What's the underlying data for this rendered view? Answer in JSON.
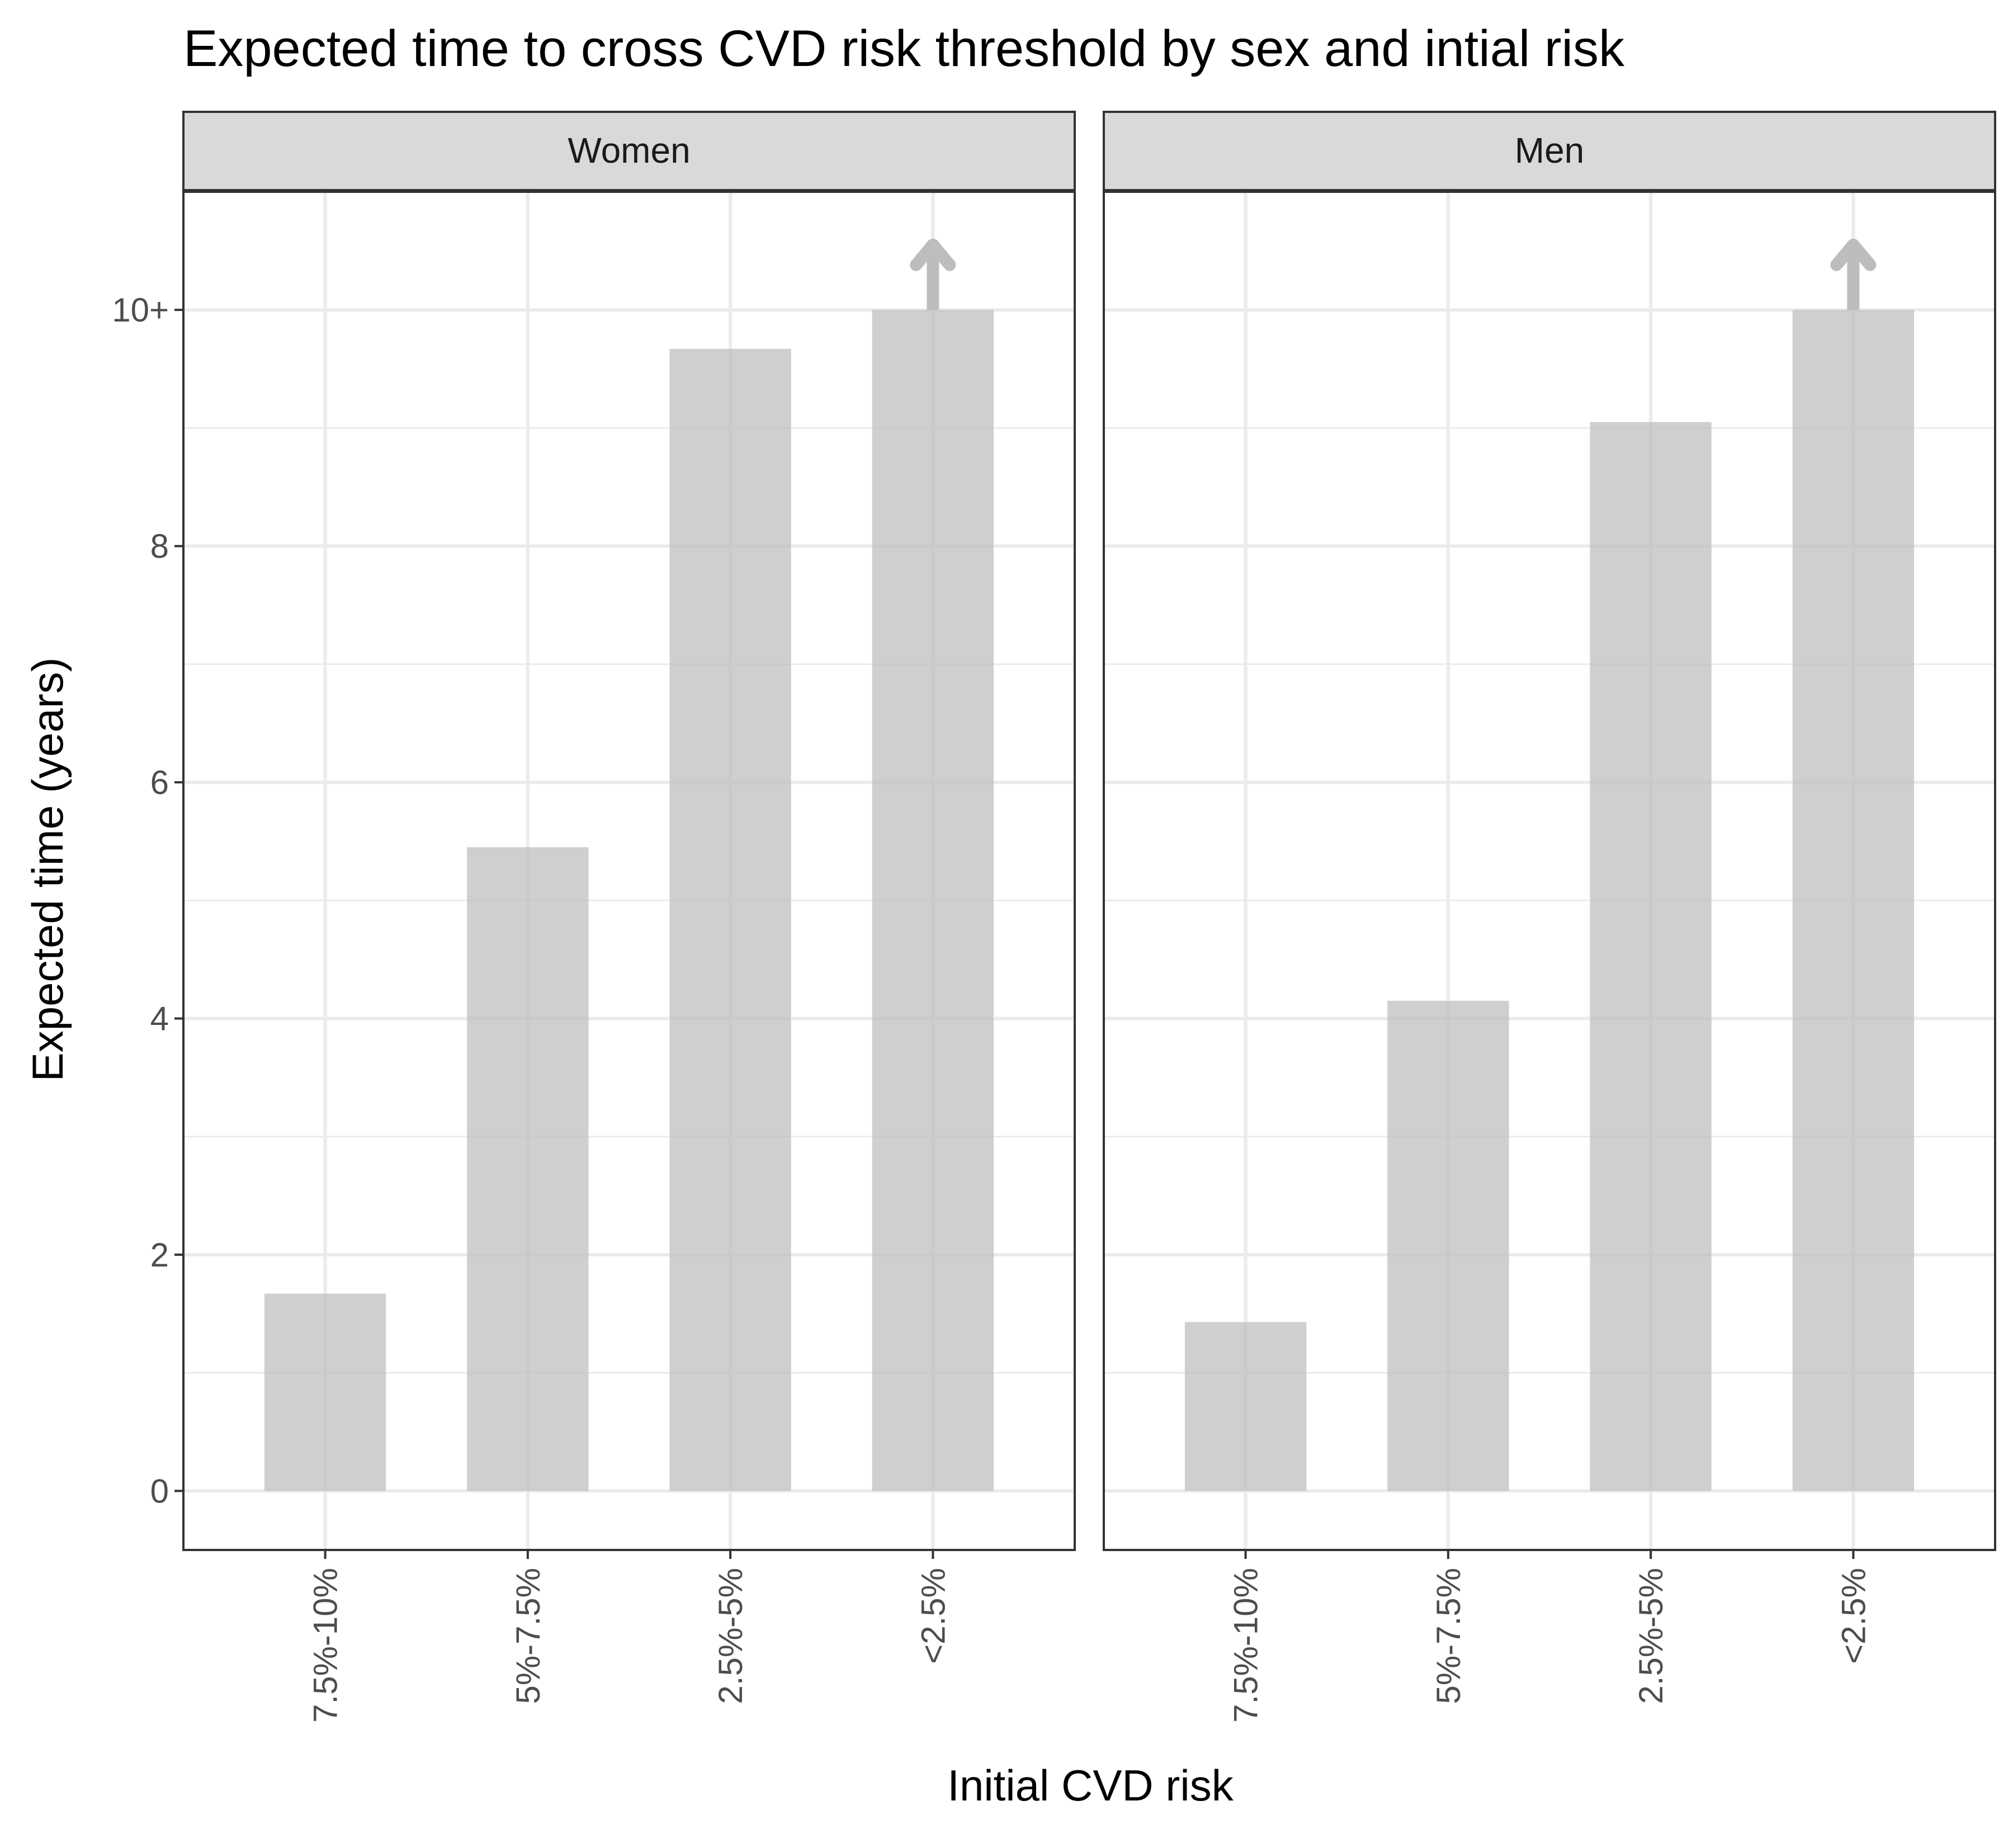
{
  "chart_data": {
    "type": "bar",
    "title": "Expected time to cross CVD risk threshold by sex and intial risk",
    "xlabel": "Initial CVD risk",
    "ylabel": "Expected time (years)",
    "categories": [
      "7.5%-10%",
      "5%-7.5%",
      "2.5%-5%",
      "<2.5%"
    ],
    "y_ticks": [
      0,
      2,
      4,
      6,
      8,
      10
    ],
    "y_tick_labels": [
      "0",
      "2",
      "4",
      "6",
      "8",
      "10+"
    ],
    "ylim": [
      -0.5,
      11.0
    ],
    "grid": true,
    "legend": "none",
    "bar_color": "#bfbfbf",
    "arrow_color": "#bdbdbd",
    "panels": [
      {
        "name": "Women",
        "values": [
          1.67,
          5.45,
          9.67,
          10.0
        ],
        "censored": [
          false,
          false,
          false,
          true
        ]
      },
      {
        "name": "Men",
        "values": [
          1.43,
          4.15,
          9.05,
          10.0
        ],
        "censored": [
          false,
          false,
          false,
          true
        ]
      }
    ]
  }
}
